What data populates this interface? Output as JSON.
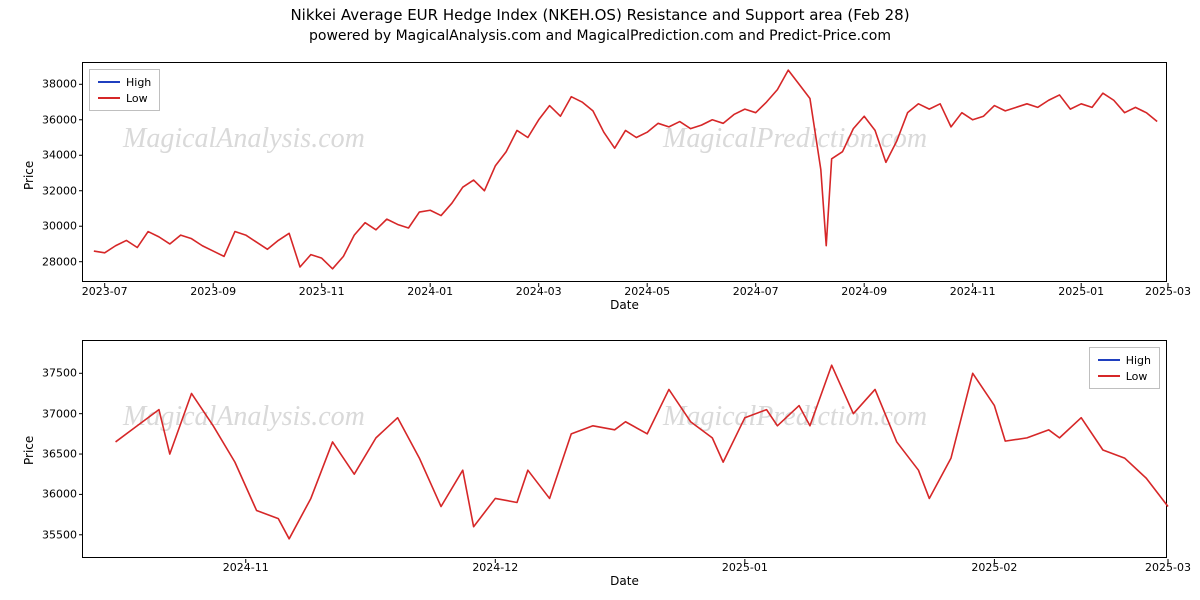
{
  "title": "Nikkei Average EUR Hedge Index (NKEH.OS) Resistance and Support area (Feb 28)",
  "subtitle": "powered by MagicalAnalysis.com and MagicalPrediction.com and Predict-Price.com",
  "watermarks": [
    "MagicalAnalysis.com",
    "MagicalPrediction.com"
  ],
  "legend": {
    "items": [
      {
        "label": "High",
        "color": "#1f3fbf"
      },
      {
        "label": "Low",
        "color": "#d62728"
      }
    ]
  },
  "panel1": {
    "ylabel": "Price",
    "xlabel": "Date",
    "ylim": [
      26800,
      39200
    ],
    "yticks": [
      28000,
      30000,
      32000,
      34000,
      36000,
      38000
    ],
    "xlim": [
      0,
      100
    ],
    "xticks": [
      {
        "pos": 2,
        "label": "2023-07"
      },
      {
        "pos": 12,
        "label": "2023-09"
      },
      {
        "pos": 22,
        "label": "2023-11"
      },
      {
        "pos": 32,
        "label": "2024-01"
      },
      {
        "pos": 42,
        "label": "2024-03"
      },
      {
        "pos": 52,
        "label": "2024-05"
      },
      {
        "pos": 62,
        "label": "2024-07"
      },
      {
        "pos": 72,
        "label": "2024-09"
      },
      {
        "pos": 82,
        "label": "2024-11"
      },
      {
        "pos": 92,
        "label": "2025-01"
      },
      {
        "pos": 100,
        "label": "2025-03"
      }
    ],
    "line_color": "#d62728",
    "line_width": 1.6,
    "series_low": [
      [
        1,
        28600
      ],
      [
        2,
        28500
      ],
      [
        3,
        28900
      ],
      [
        4,
        29200
      ],
      [
        5,
        28800
      ],
      [
        6,
        29700
      ],
      [
        7,
        29400
      ],
      [
        8,
        29000
      ],
      [
        9,
        29500
      ],
      [
        10,
        29300
      ],
      [
        11,
        28900
      ],
      [
        12,
        28600
      ],
      [
        13,
        28300
      ],
      [
        14,
        29700
      ],
      [
        15,
        29500
      ],
      [
        16,
        29100
      ],
      [
        17,
        28700
      ],
      [
        18,
        29200
      ],
      [
        19,
        29600
      ],
      [
        20,
        27700
      ],
      [
        21,
        28400
      ],
      [
        22,
        28200
      ],
      [
        23,
        27600
      ],
      [
        24,
        28300
      ],
      [
        25,
        29500
      ],
      [
        26,
        30200
      ],
      [
        27,
        29800
      ],
      [
        28,
        30400
      ],
      [
        29,
        30100
      ],
      [
        30,
        29900
      ],
      [
        31,
        30800
      ],
      [
        32,
        30900
      ],
      [
        33,
        30600
      ],
      [
        34,
        31300
      ],
      [
        35,
        32200
      ],
      [
        36,
        32600
      ],
      [
        37,
        32000
      ],
      [
        38,
        33400
      ],
      [
        39,
        34200
      ],
      [
        40,
        35400
      ],
      [
        41,
        35000
      ],
      [
        42,
        36000
      ],
      [
        43,
        36800
      ],
      [
        44,
        36200
      ],
      [
        45,
        37300
      ],
      [
        46,
        37000
      ],
      [
        47,
        36500
      ],
      [
        48,
        35300
      ],
      [
        49,
        34400
      ],
      [
        50,
        35400
      ],
      [
        51,
        35000
      ],
      [
        52,
        35300
      ],
      [
        53,
        35800
      ],
      [
        54,
        35600
      ],
      [
        55,
        35900
      ],
      [
        56,
        35500
      ],
      [
        57,
        35700
      ],
      [
        58,
        36000
      ],
      [
        59,
        35800
      ],
      [
        60,
        36300
      ],
      [
        61,
        36600
      ],
      [
        62,
        36400
      ],
      [
        63,
        37000
      ],
      [
        64,
        37700
      ],
      [
        65,
        38800
      ],
      [
        66,
        38000
      ],
      [
        67,
        37200
      ],
      [
        68,
        33200
      ],
      [
        68.5,
        28900
      ],
      [
        69,
        33800
      ],
      [
        70,
        34200
      ],
      [
        71,
        35500
      ],
      [
        72,
        36200
      ],
      [
        73,
        35400
      ],
      [
        74,
        33600
      ],
      [
        75,
        34800
      ],
      [
        76,
        36400
      ],
      [
        77,
        36900
      ],
      [
        78,
        36600
      ],
      [
        79,
        36900
      ],
      [
        80,
        35600
      ],
      [
        81,
        36400
      ],
      [
        82,
        36000
      ],
      [
        83,
        36200
      ],
      [
        84,
        36800
      ],
      [
        85,
        36500
      ],
      [
        86,
        36700
      ],
      [
        87,
        36900
      ],
      [
        88,
        36700
      ],
      [
        89,
        37100
      ],
      [
        90,
        37400
      ],
      [
        91,
        36600
      ],
      [
        92,
        36900
      ],
      [
        93,
        36700
      ],
      [
        94,
        37500
      ],
      [
        95,
        37100
      ],
      [
        96,
        36400
      ],
      [
        97,
        36700
      ],
      [
        98,
        36400
      ],
      [
        99,
        35900
      ]
    ]
  },
  "panel2": {
    "ylabel": "Price",
    "xlabel": "Date",
    "ylim": [
      35200,
      37900
    ],
    "yticks": [
      35500,
      36000,
      36500,
      37000,
      37500
    ],
    "xlim": [
      0,
      100
    ],
    "xticks": [
      {
        "pos": 15,
        "label": "2024-11"
      },
      {
        "pos": 38,
        "label": "2024-12"
      },
      {
        "pos": 61,
        "label": "2025-01"
      },
      {
        "pos": 84,
        "label": "2025-02"
      },
      {
        "pos": 100,
        "label": "2025-03"
      }
    ],
    "line_color": "#d62728",
    "line_width": 1.6,
    "series_low": [
      [
        3,
        36650
      ],
      [
        5,
        36850
      ],
      [
        7,
        37050
      ],
      [
        8,
        36500
      ],
      [
        10,
        37250
      ],
      [
        12,
        36850
      ],
      [
        14,
        36400
      ],
      [
        16,
        35800
      ],
      [
        18,
        35700
      ],
      [
        19,
        35450
      ],
      [
        21,
        35950
      ],
      [
        23,
        36650
      ],
      [
        25,
        36250
      ],
      [
        27,
        36700
      ],
      [
        29,
        36950
      ],
      [
        31,
        36450
      ],
      [
        33,
        35850
      ],
      [
        35,
        36300
      ],
      [
        36,
        35600
      ],
      [
        38,
        35950
      ],
      [
        40,
        35900
      ],
      [
        41,
        36300
      ],
      [
        43,
        35950
      ],
      [
        45,
        36750
      ],
      [
        47,
        36850
      ],
      [
        49,
        36800
      ],
      [
        50,
        36900
      ],
      [
        52,
        36750
      ],
      [
        54,
        37300
      ],
      [
        56,
        36900
      ],
      [
        58,
        36700
      ],
      [
        59,
        36400
      ],
      [
        61,
        36950
      ],
      [
        63,
        37050
      ],
      [
        64,
        36850
      ],
      [
        66,
        37100
      ],
      [
        67,
        36850
      ],
      [
        69,
        37600
      ],
      [
        71,
        37000
      ],
      [
        73,
        37300
      ],
      [
        75,
        36650
      ],
      [
        77,
        36300
      ],
      [
        78,
        35950
      ],
      [
        80,
        36450
      ],
      [
        82,
        37500
      ],
      [
        84,
        37100
      ],
      [
        85,
        36660
      ],
      [
        87,
        36700
      ],
      [
        89,
        36800
      ],
      [
        90,
        36700
      ],
      [
        92,
        36950
      ],
      [
        94,
        36550
      ],
      [
        96,
        36450
      ],
      [
        98,
        36200
      ],
      [
        100,
        35850
      ]
    ]
  },
  "style": {
    "border_color": "#000000",
    "watermark_color": "#d9d9d9",
    "text_color": "#000000",
    "background": "#ffffff"
  }
}
